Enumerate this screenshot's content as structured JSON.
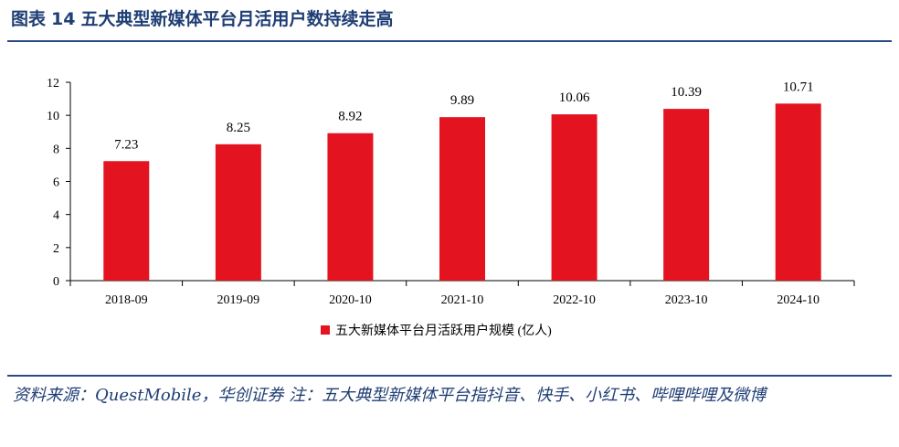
{
  "figure": {
    "label": "图表",
    "number": "14",
    "title": "五大典型新媒体平台月活用户数持续走高"
  },
  "chart_data": {
    "type": "bar",
    "title": "五大典型新媒体平台月活用户数持续走高",
    "categories": [
      "2018-09",
      "2019-09",
      "2020-10",
      "2021-10",
      "2022-10",
      "2023-10",
      "2024-10"
    ],
    "series": [
      {
        "name": "五大新媒体平台月活跃用户规模 (亿人)",
        "values": [
          7.23,
          8.25,
          8.92,
          9.89,
          10.06,
          10.39,
          10.71
        ],
        "color": "#e3141f"
      }
    ],
    "value_labels": [
      "7.23",
      "8.25",
      "8.92",
      "9.89",
      "10.06",
      "10.39",
      "10.71"
    ],
    "yticks": [
      "0",
      "2",
      "4",
      "6",
      "8",
      "10",
      "12"
    ],
    "ylim": [
      0,
      12
    ],
    "xlabel": "",
    "ylabel": "",
    "grid": false,
    "legend_position": "bottom-center"
  },
  "source_note": "资料来源：QuestMobile，华创证券 注：五大典型新媒体平台指抖音、快手、小红书、哔哩哔哩及微博"
}
